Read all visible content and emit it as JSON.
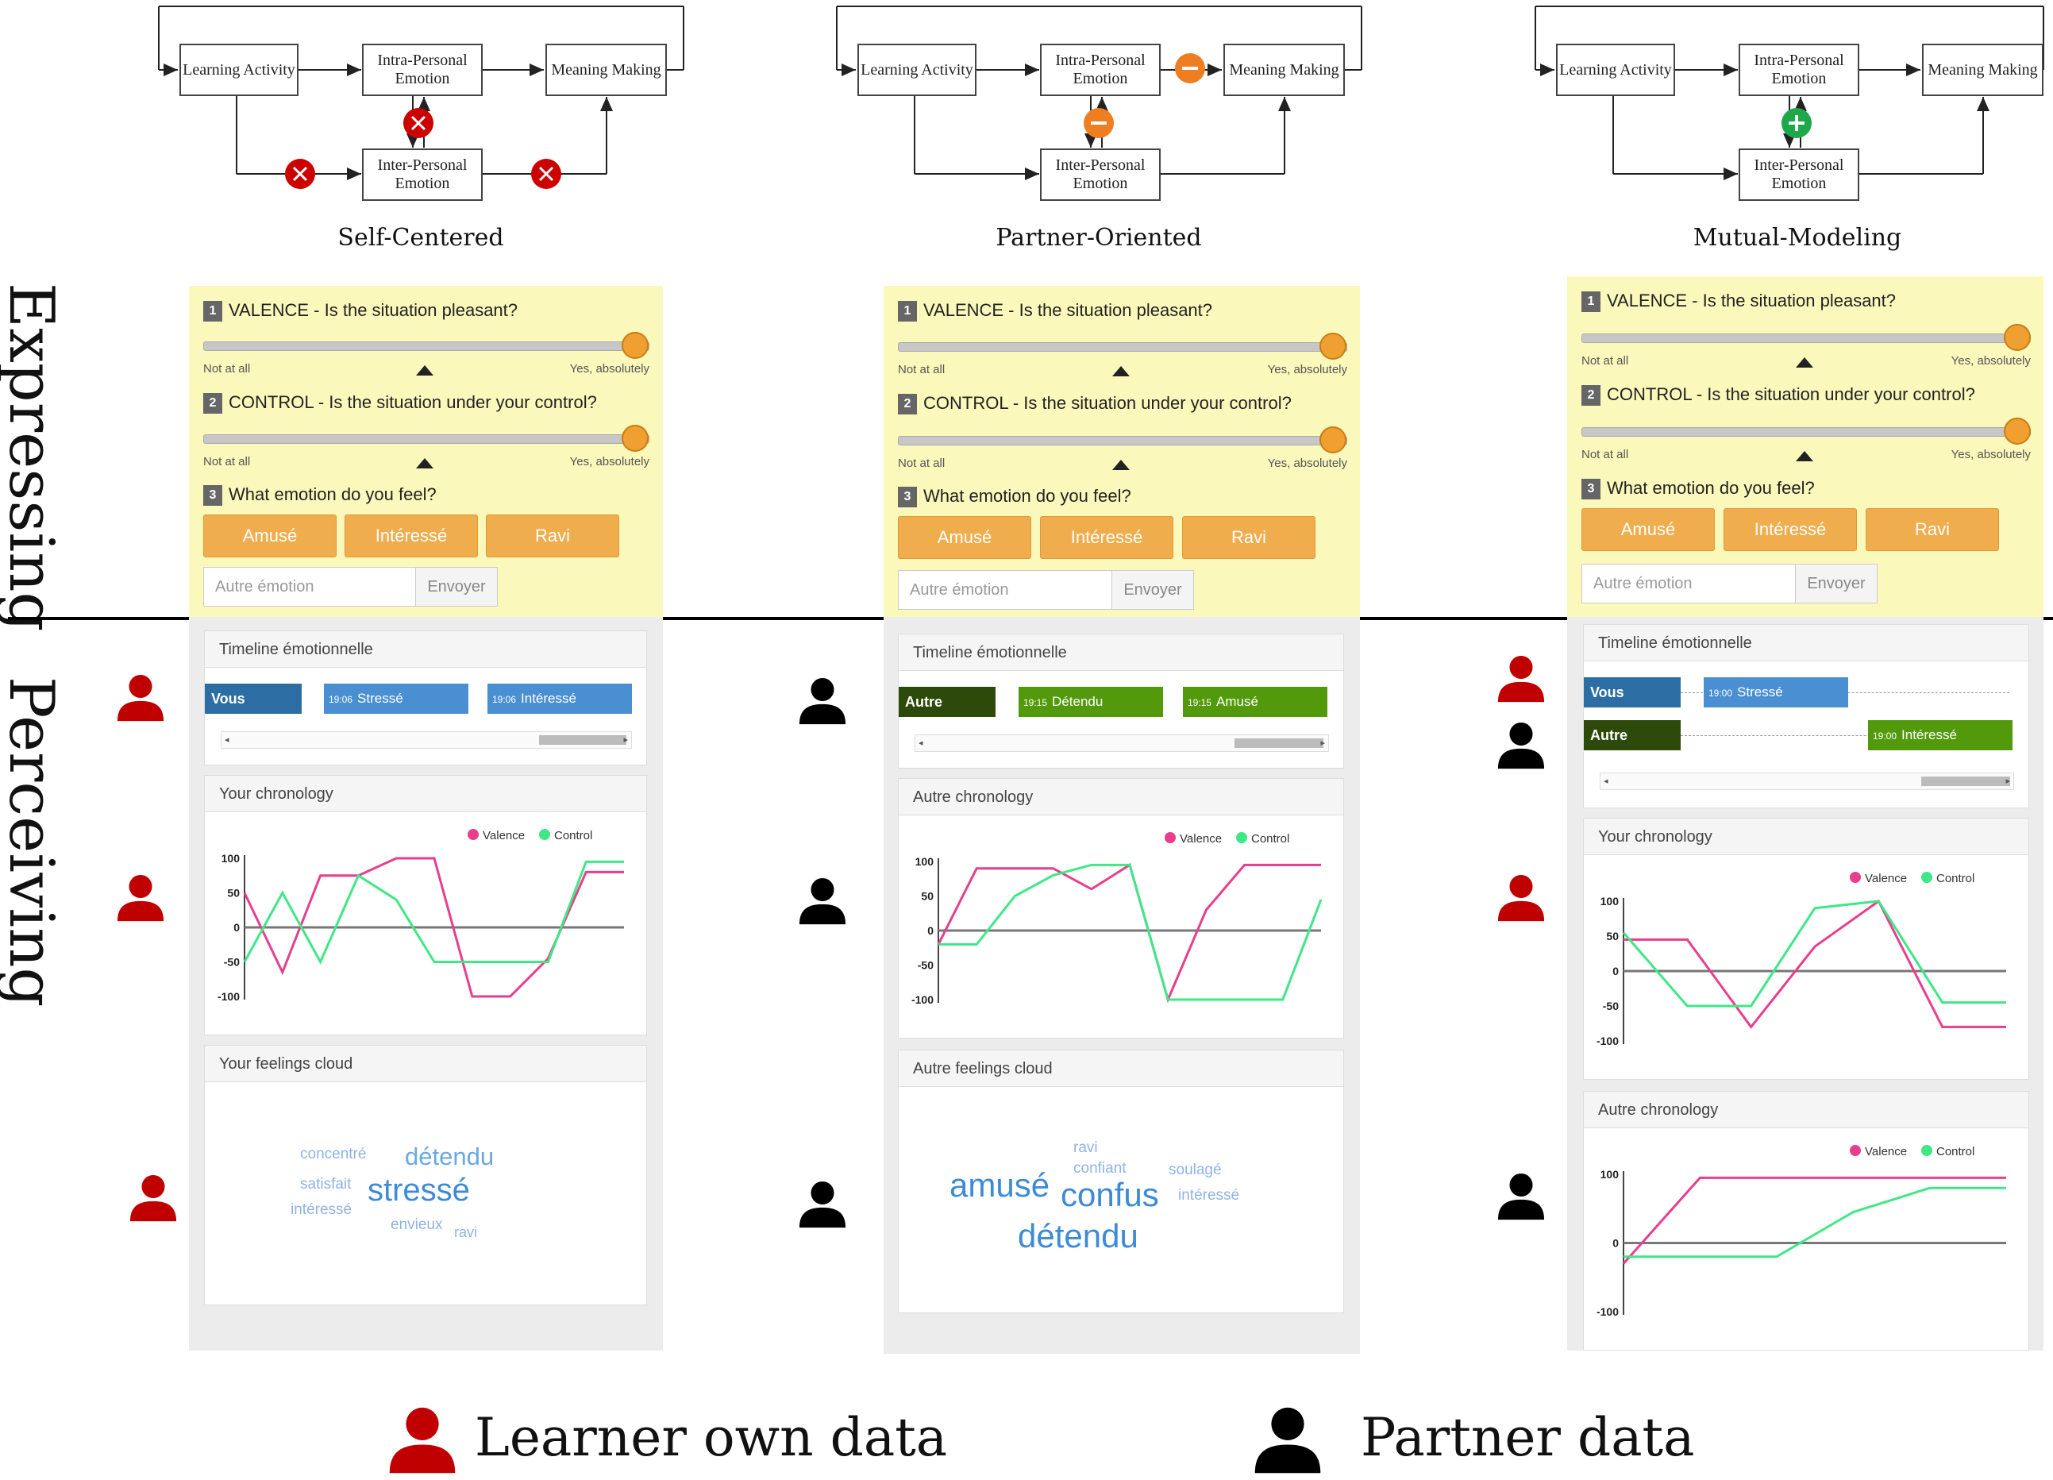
{
  "diagram": {
    "box_learning": "Learning Activity",
    "box_intra": "Intra-Personal Emotion",
    "box_meaning": "Meaning Making",
    "box_inter": "Inter-Personal Emotion",
    "titles": [
      "Self-Centered",
      "Partner-Oriented",
      "Mutual-Modeling"
    ]
  },
  "side_labels": {
    "expressing": "Expressing",
    "perceiving": "Perceiving"
  },
  "express": {
    "q1": "VALENCE - Is the situation pleasant?",
    "q2": "CONTROL - Is the situation under your control?",
    "q3": "What emotion do you feel?",
    "q_nums": [
      "1",
      "2",
      "3"
    ],
    "scale_left": "Not at all",
    "scale_right": "Yes, absolutely",
    "buttons": [
      "Amusé",
      "Intéressé",
      "Ravi"
    ],
    "autre_placeholder": "Autre émotion",
    "send": "Envoyer"
  },
  "panels": {
    "p1": {
      "timeline_title": "Timeline émotionnelle",
      "row_label": "Vous",
      "events": [
        {
          "time": "19:06",
          "label": "Stressé"
        },
        {
          "time": "19:06",
          "label": "Intéressé"
        }
      ],
      "chron_title": "Your chronology",
      "cloud_title": "Your feelings cloud",
      "cloud": [
        "concentré",
        "détendu",
        "satisfait",
        "stressé",
        "intéressé",
        "envieux",
        "ravi"
      ]
    },
    "p2": {
      "timeline_title": "Timeline émotionnelle",
      "row_label": "Autre",
      "events": [
        {
          "time": "19:15",
          "label": "Détendu"
        },
        {
          "time": "19:15",
          "label": "Amusé"
        }
      ],
      "chron_title": "Autre chronology",
      "cloud_title": "Autre feelings cloud",
      "cloud": [
        "ravi",
        "confiant",
        "soulagé",
        "amusé",
        "confus",
        "intéressé",
        "détendu"
      ]
    },
    "p3": {
      "timeline_title": "Timeline émotionnelle",
      "row_label_1": "Vous",
      "row_label_2": "Autre",
      "event_1": {
        "time": "19:00",
        "label": "Stressé"
      },
      "event_2": {
        "time": "19:00",
        "label": "Intéressé"
      },
      "chron_title_1": "Your chronology",
      "chron_title_2": "Autre chronology"
    }
  },
  "chart_data": [
    {
      "type": "line",
      "title": "Your chronology",
      "ylim": [
        -100,
        100
      ],
      "yticks": [
        100,
        50,
        0,
        -50,
        -100
      ],
      "x": [
        0,
        1,
        2,
        3,
        4,
        5,
        6,
        7,
        8,
        9,
        10
      ],
      "series": [
        {
          "name": "Valence",
          "color": "#e83e8c",
          "values": [
            50,
            -65,
            75,
            75,
            100,
            100,
            -100,
            -100,
            -45,
            80,
            80
          ]
        },
        {
          "name": "Control",
          "color": "#3ee886",
          "values": [
            -50,
            50,
            -50,
            75,
            40,
            -50,
            -50,
            -50,
            -50,
            95,
            95
          ]
        }
      ]
    },
    {
      "type": "line",
      "title": "Autre chronology",
      "ylim": [
        -100,
        100
      ],
      "yticks": [
        100,
        50,
        0,
        -50,
        -100
      ],
      "x": [
        0,
        1,
        2,
        3,
        4,
        5,
        6,
        7,
        8,
        9,
        10
      ],
      "series": [
        {
          "name": "Valence",
          "color": "#e83e8c",
          "values": [
            -20,
            90,
            90,
            90,
            60,
            95,
            -100,
            30,
            95,
            95,
            95
          ]
        },
        {
          "name": "Control",
          "color": "#3ee886",
          "values": [
            -20,
            -20,
            50,
            80,
            95,
            95,
            -100,
            -100,
            -100,
            -100,
            45
          ]
        }
      ]
    },
    {
      "type": "line",
      "title": "Your chronology",
      "ylim": [
        -100,
        100
      ],
      "yticks": [
        100,
        50,
        0,
        -50,
        -100
      ],
      "x": [
        0,
        1,
        2,
        3,
        4,
        5,
        6
      ],
      "series": [
        {
          "name": "Valence",
          "color": "#e83e8c",
          "values": [
            45,
            45,
            -80,
            35,
            100,
            -80,
            -80
          ]
        },
        {
          "name": "Control",
          "color": "#3ee886",
          "values": [
            55,
            -50,
            -50,
            90,
            100,
            -45,
            -45
          ]
        }
      ]
    },
    {
      "type": "line",
      "title": "Autre chronology",
      "ylim": [
        -100,
        100
      ],
      "yticks": [
        100,
        0,
        -100
      ],
      "x": [
        0,
        1,
        2,
        3,
        4,
        5
      ],
      "series": [
        {
          "name": "Valence",
          "color": "#e83e8c",
          "values": [
            -30,
            95,
            95,
            95,
            95,
            95
          ]
        },
        {
          "name": "Control",
          "color": "#3ee886",
          "values": [
            -20,
            -20,
            -20,
            45,
            80,
            80
          ]
        }
      ]
    }
  ],
  "legend": {
    "own": "Learner own data",
    "partner": "Partner data"
  },
  "colors": {
    "own": "#c00000",
    "partner": "#000000",
    "express_bg": "#fbf8bb",
    "button": "#f0ad4e",
    "vous_bar": "#2c6ea3",
    "event_blue": "#4a8fd1",
    "autre_bar": "#2d4a0b",
    "event_green": "#529a0c"
  },
  "icons": {
    "cross": "cross-icon",
    "minus": "minus-icon",
    "plus": "plus-icon",
    "person": "person-icon"
  }
}
